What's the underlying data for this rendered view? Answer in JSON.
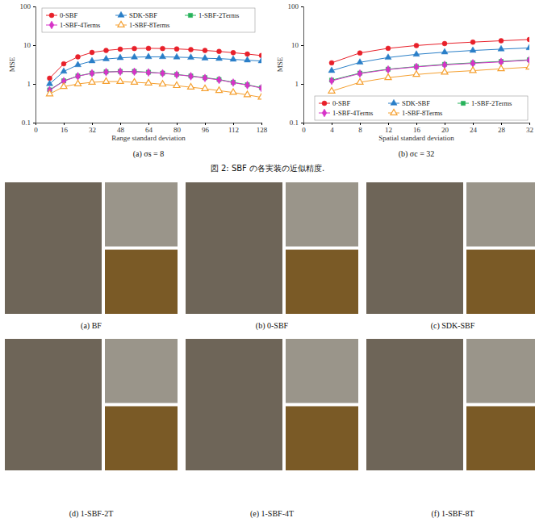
{
  "chart_data": [
    {
      "type": "line",
      "title": "(a) σs = 8",
      "x_label": "Range standard deviation",
      "y_label": "MSE",
      "x": [
        8,
        16,
        24,
        32,
        40,
        48,
        56,
        64,
        72,
        80,
        88,
        96,
        104,
        112,
        120,
        128
      ],
      "xlim": [
        0,
        128
      ],
      "xticks": [
        0,
        16,
        32,
        48,
        64,
        80,
        96,
        112,
        128
      ],
      "ylim": [
        0.1,
        100
      ],
      "yticks": [
        0.1,
        1,
        10,
        100
      ],
      "log": "y",
      "grid": false,
      "legend": "top",
      "series": [
        {
          "name": "0-SBF",
          "color": "#e8202a",
          "marker": "circle",
          "values": [
            1.4,
            3.3,
            5.0,
            6.5,
            7.3,
            7.9,
            8.2,
            8.3,
            8.2,
            8.0,
            7.7,
            7.3,
            6.9,
            6.4,
            5.9,
            5.4
          ]
        },
        {
          "name": "SDK-SBF",
          "color": "#2a7fc8",
          "marker": "triangle",
          "values": [
            1.0,
            2.1,
            3.1,
            3.9,
            4.4,
            4.7,
            4.9,
            5.0,
            5.0,
            4.9,
            4.8,
            4.6,
            4.5,
            4.3,
            4.1,
            3.9
          ]
        },
        {
          "name": "1-SBF-2Terms",
          "color": "#27b35a",
          "marker": "square",
          "values": [
            0.7,
            1.2,
            1.6,
            1.9,
            2.05,
            2.1,
            2.1,
            2.0,
            1.9,
            1.75,
            1.6,
            1.45,
            1.3,
            1.1,
            0.95,
            0.8
          ]
        },
        {
          "name": "1-SBF-4Terms",
          "color": "#d633c8",
          "marker": "diamond",
          "values": [
            0.68,
            1.18,
            1.58,
            1.88,
            2.02,
            2.08,
            2.06,
            1.98,
            1.88,
            1.73,
            1.58,
            1.42,
            1.27,
            1.08,
            0.93,
            0.78
          ]
        },
        {
          "name": "1-SBF-8Terms",
          "color": "#f5a030",
          "marker": "triangle-open",
          "values": [
            0.55,
            0.85,
            1.0,
            1.1,
            1.15,
            1.15,
            1.1,
            1.05,
            0.98,
            0.9,
            0.82,
            0.75,
            0.67,
            0.6,
            0.52,
            0.45
          ]
        }
      ]
    },
    {
      "type": "line",
      "title": "(b) σc = 32",
      "x_label": "Spatial standard deviation",
      "y_label": "MSE",
      "x": [
        4,
        8,
        12,
        16,
        20,
        24,
        28,
        32
      ],
      "xlim": [
        0,
        32
      ],
      "xticks": [
        0,
        4,
        8,
        12,
        16,
        20,
        24,
        28,
        32
      ],
      "ylim": [
        0.1,
        100
      ],
      "yticks": [
        0.1,
        1,
        10,
        100
      ],
      "log": "y",
      "grid": false,
      "legend": "bottom-right",
      "series": [
        {
          "name": "0-SBF",
          "color": "#e8202a",
          "marker": "circle",
          "values": [
            3.5,
            6.3,
            8.3,
            9.8,
            11,
            12,
            13,
            14
          ]
        },
        {
          "name": "SDK-SBF",
          "color": "#2a7fc8",
          "marker": "triangle",
          "values": [
            2.2,
            3.6,
            4.8,
            5.8,
            6.6,
            7.3,
            7.9,
            8.5
          ]
        },
        {
          "name": "1-SBF-2Terms",
          "color": "#27b35a",
          "marker": "square",
          "values": [
            1.25,
            1.9,
            2.4,
            2.8,
            3.2,
            3.5,
            3.8,
            4.2
          ]
        },
        {
          "name": "1-SBF-4Terms",
          "color": "#d633c8",
          "marker": "diamond",
          "values": [
            1.2,
            1.85,
            2.35,
            2.75,
            3.1,
            3.4,
            3.7,
            4.1
          ]
        },
        {
          "name": "1-SBF-8Terms",
          "color": "#f5a030",
          "marker": "triangle-open",
          "values": [
            0.65,
            1.1,
            1.45,
            1.75,
            2.0,
            2.2,
            2.45,
            2.7
          ]
        }
      ]
    }
  ],
  "figure_caption": "図 2: SBF の各実装の近似精度.",
  "panels": [
    {
      "caption": "(a) BF"
    },
    {
      "caption": "(b) 0-SBF"
    },
    {
      "caption": "(c) SDK-SBF"
    },
    {
      "caption": "(d) 1-SBF-2T"
    },
    {
      "caption": "(e) 1-SBF-4T"
    },
    {
      "caption": "(f) 1-SBF-8T"
    }
  ]
}
